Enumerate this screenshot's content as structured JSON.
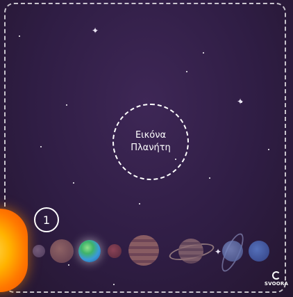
{
  "placeholder": {
    "line1": "Εικόνα",
    "line2": "Πλανήτη"
  },
  "step": {
    "number": "1"
  },
  "logo": {
    "text": "SVOORA"
  },
  "colors": {
    "background": "#2f1d44",
    "sun": "#ff9800",
    "earth": "#3a9ad9"
  },
  "planets": [
    "sun",
    "mercury",
    "venus",
    "earth",
    "mars",
    "jupiter",
    "saturn",
    "uranus",
    "neptune"
  ]
}
